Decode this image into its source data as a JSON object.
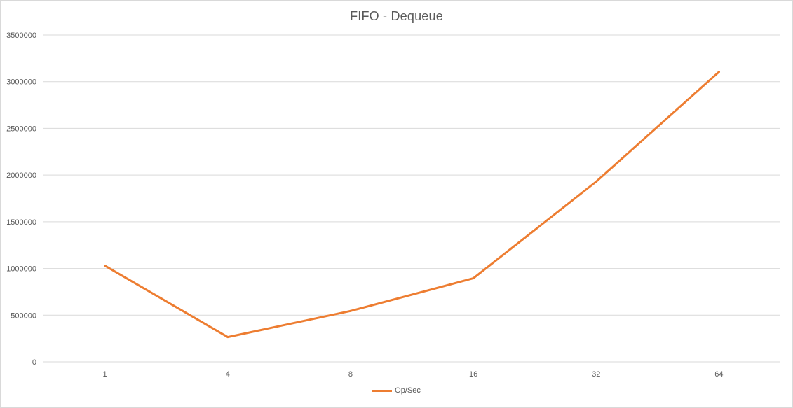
{
  "chart_data": {
    "type": "line",
    "title": "FIFO - Dequeue",
    "xlabel": "",
    "ylabel": "",
    "categories": [
      "1",
      "4",
      "8",
      "16",
      "32",
      "64"
    ],
    "series": [
      {
        "name": "Op/Sec",
        "color": "#ed7d31",
        "values": [
          1030000,
          265000,
          545000,
          895000,
          1930000,
          3105000
        ]
      }
    ],
    "ylim": [
      0,
      3500000
    ],
    "yticks": [
      "0",
      "500000",
      "1000000",
      "1500000",
      "2000000",
      "2500000",
      "3000000",
      "3500000"
    ],
    "grid": true,
    "legend_position": "bottom",
    "gridline_color": "#d9d9d9"
  }
}
